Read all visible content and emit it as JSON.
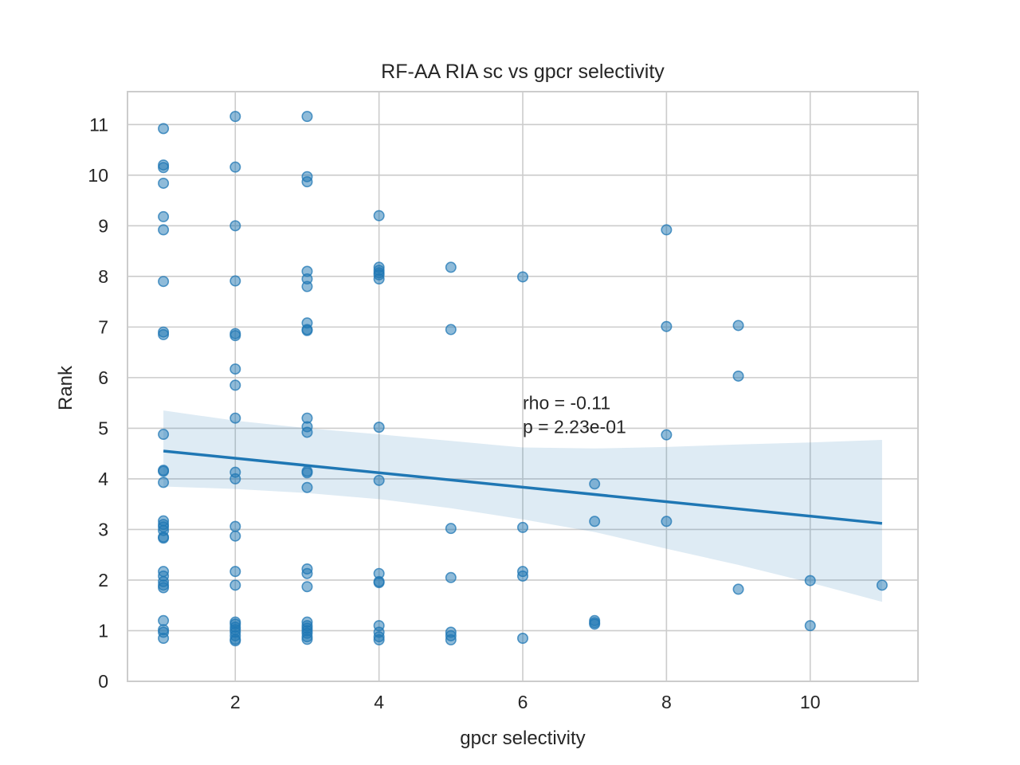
{
  "chart_data": {
    "type": "scatter",
    "title": "RF-AA RIA sc vs gpcr selectivity",
    "xlabel": "gpcr selectivity",
    "ylabel": "Rank",
    "xlim": [
      0.5,
      11.5
    ],
    "ylim": [
      0,
      11.65
    ],
    "xticks": [
      2,
      4,
      6,
      8,
      10
    ],
    "yticks": [
      0,
      1,
      2,
      3,
      4,
      5,
      6,
      7,
      8,
      9,
      10,
      11
    ],
    "grid": true,
    "colors": {
      "points": "#1f77b4",
      "line": "#1f77b4",
      "band": "#1f77b4",
      "grid": "#cccccc"
    },
    "annotations": [
      "rho = -0.11",
      "p = 2.23e-01"
    ],
    "annotation_anchor": {
      "x": 6.0,
      "y": 5.5
    },
    "regression": {
      "x": [
        1,
        11
      ],
      "y": [
        4.55,
        3.12
      ],
      "ci_x": [
        1,
        2,
        3,
        4,
        5,
        6,
        7,
        8,
        9,
        10,
        11
      ],
      "ci_upper": [
        5.35,
        5.15,
        5.0,
        4.88,
        4.75,
        4.62,
        4.6,
        4.63,
        4.68,
        4.72,
        4.77
      ],
      "ci_lower": [
        3.85,
        3.8,
        3.72,
        3.6,
        3.42,
        3.2,
        2.95,
        2.62,
        2.3,
        1.95,
        1.57
      ]
    },
    "points": [
      [
        1,
        10.92
      ],
      [
        1,
        10.2
      ],
      [
        1,
        10.15
      ],
      [
        1,
        9.84
      ],
      [
        1,
        9.18
      ],
      [
        1,
        8.92
      ],
      [
        1,
        7.9
      ],
      [
        1,
        6.9
      ],
      [
        1,
        6.85
      ],
      [
        1,
        4.88
      ],
      [
        1,
        4.17
      ],
      [
        1,
        4.15
      ],
      [
        1,
        3.93
      ],
      [
        1,
        3.17
      ],
      [
        1,
        3.1
      ],
      [
        1,
        3.05
      ],
      [
        1,
        2.98
      ],
      [
        1,
        2.85
      ],
      [
        1,
        2.83
      ],
      [
        1,
        2.17
      ],
      [
        1,
        2.08
      ],
      [
        1,
        1.97
      ],
      [
        1,
        1.9
      ],
      [
        1,
        1.85
      ],
      [
        1,
        1.2
      ],
      [
        1,
        1.02
      ],
      [
        1,
        0.97
      ],
      [
        1,
        0.85
      ],
      [
        2,
        11.16
      ],
      [
        2,
        10.16
      ],
      [
        2,
        9.0
      ],
      [
        2,
        7.91
      ],
      [
        2,
        6.87
      ],
      [
        2,
        6.83
      ],
      [
        2,
        6.17
      ],
      [
        2,
        5.85
      ],
      [
        2,
        5.2
      ],
      [
        2,
        4.13
      ],
      [
        2,
        4.0
      ],
      [
        2,
        3.06
      ],
      [
        2,
        2.87
      ],
      [
        2,
        2.17
      ],
      [
        2,
        1.9
      ],
      [
        2,
        1.17
      ],
      [
        2,
        1.13
      ],
      [
        2,
        1.07
      ],
      [
        2,
        1.02
      ],
      [
        2,
        0.97
      ],
      [
        2,
        0.9
      ],
      [
        2,
        0.83
      ],
      [
        2,
        0.8
      ],
      [
        3,
        11.16
      ],
      [
        3,
        9.97
      ],
      [
        3,
        9.87
      ],
      [
        3,
        8.1
      ],
      [
        3,
        7.95
      ],
      [
        3,
        7.8
      ],
      [
        3,
        7.08
      ],
      [
        3,
        6.95
      ],
      [
        3,
        6.93
      ],
      [
        3,
        5.2
      ],
      [
        3,
        5.03
      ],
      [
        3,
        4.92
      ],
      [
        3,
        4.15
      ],
      [
        3,
        4.12
      ],
      [
        3,
        3.83
      ],
      [
        3,
        2.22
      ],
      [
        3,
        2.13
      ],
      [
        3,
        1.87
      ],
      [
        3,
        1.17
      ],
      [
        3,
        1.1
      ],
      [
        3,
        1.05
      ],
      [
        3,
        1.0
      ],
      [
        3,
        0.95
      ],
      [
        3,
        0.88
      ],
      [
        3,
        0.83
      ],
      [
        4,
        9.2
      ],
      [
        4,
        8.18
      ],
      [
        4,
        8.12
      ],
      [
        4,
        8.07
      ],
      [
        4,
        8.03
      ],
      [
        4,
        7.95
      ],
      [
        4,
        5.02
      ],
      [
        4,
        3.97
      ],
      [
        4,
        2.13
      ],
      [
        4,
        1.97
      ],
      [
        4,
        1.95
      ],
      [
        4,
        1.1
      ],
      [
        4,
        0.97
      ],
      [
        4,
        0.88
      ],
      [
        4,
        0.82
      ],
      [
        5,
        8.18
      ],
      [
        5,
        6.95
      ],
      [
        5,
        3.02
      ],
      [
        5,
        2.05
      ],
      [
        5,
        0.97
      ],
      [
        5,
        0.9
      ],
      [
        5,
        0.82
      ],
      [
        6,
        7.99
      ],
      [
        6,
        3.04
      ],
      [
        6,
        2.17
      ],
      [
        6,
        2.08
      ],
      [
        6,
        0.85
      ],
      [
        7,
        3.9
      ],
      [
        7,
        3.16
      ],
      [
        7,
        1.2
      ],
      [
        7,
        1.16
      ],
      [
        7,
        1.13
      ],
      [
        8,
        8.92
      ],
      [
        8,
        7.01
      ],
      [
        8,
        4.87
      ],
      [
        8,
        3.16
      ],
      [
        9,
        7.03
      ],
      [
        9,
        6.03
      ],
      [
        9,
        1.82
      ],
      [
        10,
        1.99
      ],
      [
        10,
        1.1
      ],
      [
        11,
        1.9
      ]
    ]
  }
}
